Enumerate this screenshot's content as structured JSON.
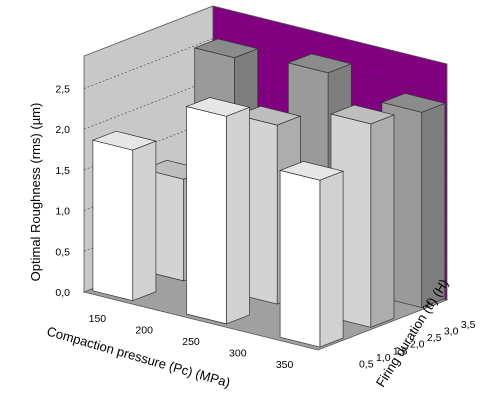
{
  "chart_data": {
    "type": "bar",
    "subtype": "3d-grid",
    "title": "",
    "zlabel": "Optimal Roughness (rms)  (µm)",
    "xlabel": "Compaction pressure (Pc)  (MPa)",
    "ylabel": "Firing duration (tf)  (H)",
    "x_ticks": [
      "150",
      "200",
      "250",
      "300",
      "350"
    ],
    "y_ticks": [
      "0,5",
      "1,0",
      "1,5",
      "2,0",
      "2,5",
      "3,0",
      "3,5"
    ],
    "z_ticks": [
      "0,0",
      "0,5",
      "1,0",
      "1,5",
      "2,0",
      "2,5"
    ],
    "zlim": [
      0,
      2.9
    ],
    "grid": true,
    "bars": [
      {
        "x": 150,
        "y": 0.5,
        "value": 1.85,
        "row": "front"
      },
      {
        "x": 250,
        "y": 0.5,
        "value": 2.55,
        "row": "front"
      },
      {
        "x": 350,
        "y": 0.5,
        "value": 2.05,
        "row": "front"
      },
      {
        "x": 150,
        "y": 2.0,
        "value": 1.25,
        "row": "middle"
      },
      {
        "x": 250,
        "y": 2.0,
        "value": 2.2,
        "row": "middle"
      },
      {
        "x": 350,
        "y": 2.0,
        "value": 2.5,
        "row": "middle"
      },
      {
        "x": 150,
        "y": 3.5,
        "value": 2.5,
        "row": "back"
      },
      {
        "x": 250,
        "y": 3.5,
        "value": 2.6,
        "row": "back"
      },
      {
        "x": 350,
        "y": 3.5,
        "value": 2.4,
        "row": "back"
      }
    ]
  },
  "colors": {
    "back_wall": "#800080",
    "side_wall": "#c8c8c8",
    "floor": "#a0a0a0",
    "front_bar_face": "#ffffff",
    "middle_bar_face": "#d3d3d3",
    "back_bar_face": "#9a9a9a"
  }
}
